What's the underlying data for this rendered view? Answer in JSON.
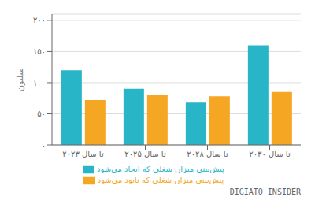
{
  "chart_data": {
    "type": "bar",
    "categories": [
      "تا سال ۲۰۲۳",
      "تا سال ۲۰۲۵",
      "تا سال ۲۰۲۸",
      "تا سال ۲۰۳۰"
    ],
    "series": [
      {
        "name": "پیش‌بینی میزان شغلی که ایجاد می‌شود",
        "color": "#29b5c8",
        "values": [
          120,
          90,
          68,
          160
        ]
      },
      {
        "name": "پیش‌بینی میزان شغلی که نابود می‌شود",
        "color": "#f5a623",
        "values": [
          72,
          80,
          78,
          85
        ]
      }
    ],
    "y_label": "میلیون",
    "ylim": [
      0,
      210
    ],
    "yticks": [
      {
        "value": 0,
        "label": "۰"
      },
      {
        "value": 50,
        "label": "۵۰"
      },
      {
        "value": 100,
        "label": "۱۰۰"
      },
      {
        "value": 150,
        "label": "۱۵۰"
      },
      {
        "value": 200,
        "label": "۲۰۰"
      }
    ],
    "grid": true,
    "legend": "bottom",
    "annotations": [
      "DIGIATO INSIDER"
    ]
  }
}
